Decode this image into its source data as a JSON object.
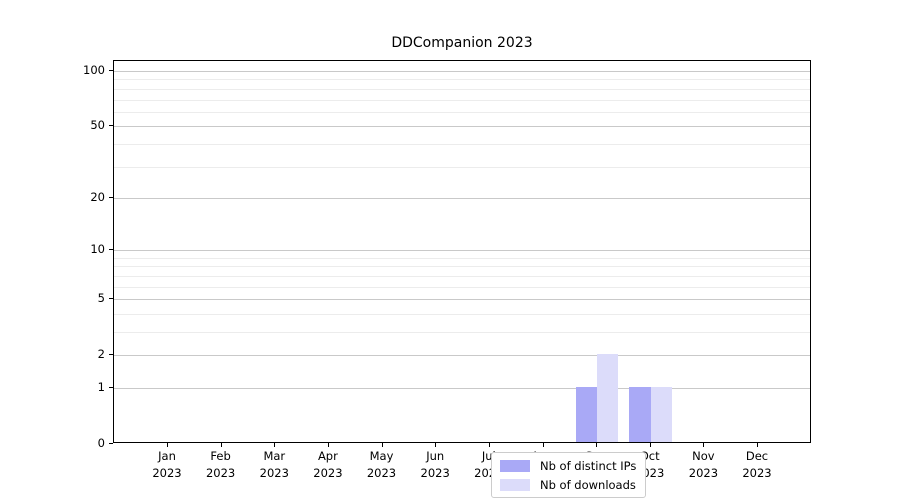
{
  "chart_data": {
    "type": "bar",
    "title": "DDCompanion 2023",
    "categories": [
      "Jan",
      "Feb",
      "Mar",
      "Apr",
      "May",
      "Jun",
      "Jul",
      "Aug",
      "Sep",
      "Oct",
      "Nov",
      "Dec"
    ],
    "x_tick_year": "2023",
    "series": [
      {
        "name": "Nb of distinct IPs",
        "color": "#a9a9f6",
        "values": [
          0,
          0,
          0,
          0,
          0,
          0,
          0,
          0,
          1,
          1,
          0,
          0
        ]
      },
      {
        "name": "Nb of downloads",
        "color": "#dcdcfa",
        "values": [
          0,
          0,
          0,
          0,
          0,
          0,
          0,
          0,
          2,
          1,
          0,
          0
        ]
      }
    ],
    "xlabel": "",
    "ylabel": "",
    "yscale": "log1p",
    "yticks": [
      0,
      1,
      2,
      5,
      10,
      20,
      50,
      100
    ],
    "ylim": [
      0,
      113
    ],
    "grid": "horizontal, major and minor",
    "legend_position": "inside lower center"
  },
  "colors": {
    "axis": "#000000",
    "grid_major": "#c9c9c9",
    "grid_minor": "#ececec",
    "legend_border": "#cccccc",
    "background": "#ffffff"
  }
}
